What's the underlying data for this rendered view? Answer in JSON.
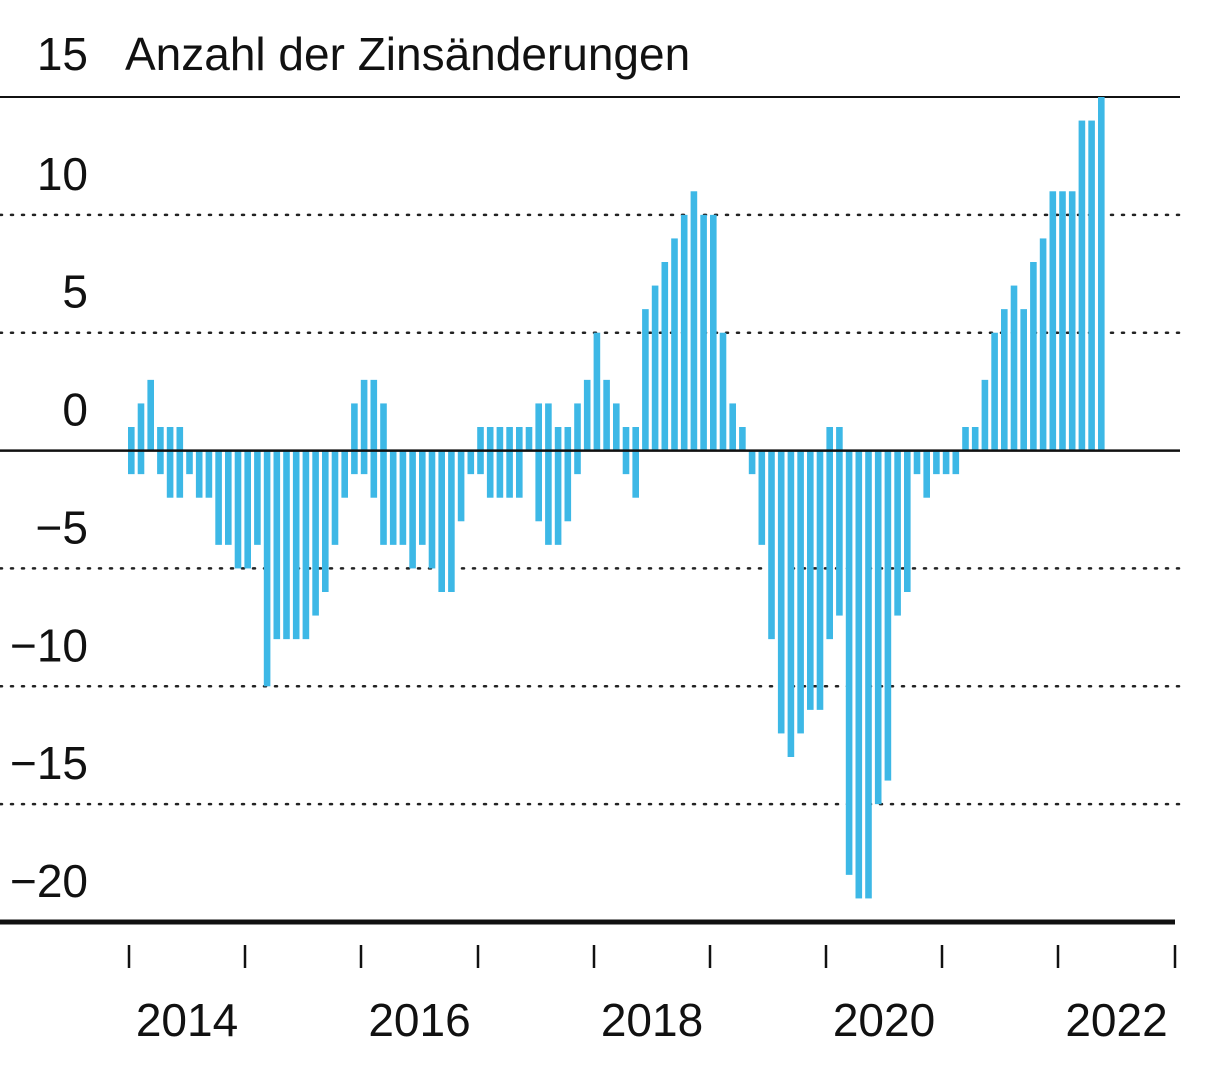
{
  "colors": {
    "bar": "#3db8e6",
    "axis": "#111111",
    "grid": "#222222"
  },
  "chart_data": {
    "type": "bar",
    "title": "Anzahl der Zinsänderungen",
    "ylim": [
      -20,
      15
    ],
    "yticks": [
      {
        "value": 15,
        "label": "15"
      },
      {
        "value": 10,
        "label": "10"
      },
      {
        "value": 5,
        "label": "5"
      },
      {
        "value": 0,
        "label": "0"
      },
      {
        "value": -5,
        "label": "−5"
      },
      {
        "value": -10,
        "label": "−10"
      },
      {
        "value": -15,
        "label": "−15"
      },
      {
        "value": -20,
        "label": "−20"
      }
    ],
    "xlabels": [
      "2014",
      "2016",
      "2018",
      "2020",
      "2022"
    ],
    "grid": "dotted horizontal",
    "bars": [
      {
        "pos": 1,
        "neg": -1
      },
      {
        "pos": 2,
        "neg": -1
      },
      {
        "pos": 3,
        "neg": 0
      },
      {
        "pos": 1,
        "neg": -1
      },
      {
        "pos": 1,
        "neg": -2
      },
      {
        "pos": 1,
        "neg": -2
      },
      {
        "pos": 0,
        "neg": -1
      },
      {
        "pos": 0,
        "neg": -2
      },
      {
        "pos": 0,
        "neg": -2
      },
      {
        "pos": 0,
        "neg": -4
      },
      {
        "pos": 0,
        "neg": -4
      },
      {
        "pos": 0,
        "neg": -5
      },
      {
        "pos": 0,
        "neg": -5
      },
      {
        "pos": 0,
        "neg": -4
      },
      {
        "pos": 0,
        "neg": -10
      },
      {
        "pos": 0,
        "neg": -8
      },
      {
        "pos": 0,
        "neg": -8
      },
      {
        "pos": 0,
        "neg": -8
      },
      {
        "pos": 0,
        "neg": -8
      },
      {
        "pos": 0,
        "neg": -7
      },
      {
        "pos": 0,
        "neg": -6
      },
      {
        "pos": 0,
        "neg": -4
      },
      {
        "pos": 0,
        "neg": -2
      },
      {
        "pos": 2,
        "neg": -1
      },
      {
        "pos": 3,
        "neg": -1
      },
      {
        "pos": 3,
        "neg": -2
      },
      {
        "pos": 2,
        "neg": -4
      },
      {
        "pos": 0,
        "neg": -4
      },
      {
        "pos": 0,
        "neg": -4
      },
      {
        "pos": 0,
        "neg": -5
      },
      {
        "pos": 0,
        "neg": -4
      },
      {
        "pos": 0,
        "neg": -5
      },
      {
        "pos": 0,
        "neg": -6
      },
      {
        "pos": 0,
        "neg": -6
      },
      {
        "pos": 0,
        "neg": -3
      },
      {
        "pos": 0,
        "neg": -1
      },
      {
        "pos": 1,
        "neg": -1
      },
      {
        "pos": 1,
        "neg": -2
      },
      {
        "pos": 1,
        "neg": -2
      },
      {
        "pos": 1,
        "neg": -2
      },
      {
        "pos": 1,
        "neg": -2
      },
      {
        "pos": 1,
        "neg": 0
      },
      {
        "pos": 2,
        "neg": -3
      },
      {
        "pos": 2,
        "neg": -4
      },
      {
        "pos": 1,
        "neg": -4
      },
      {
        "pos": 1,
        "neg": -3
      },
      {
        "pos": 2,
        "neg": -1
      },
      {
        "pos": 3,
        "neg": 0
      },
      {
        "pos": 5,
        "neg": 0
      },
      {
        "pos": 3,
        "neg": 0
      },
      {
        "pos": 2,
        "neg": 0
      },
      {
        "pos": 1,
        "neg": -1
      },
      {
        "pos": 1,
        "neg": -2
      },
      {
        "pos": 6,
        "neg": 0
      },
      {
        "pos": 7,
        "neg": 0
      },
      {
        "pos": 8,
        "neg": 0
      },
      {
        "pos": 9,
        "neg": 0
      },
      {
        "pos": 10,
        "neg": 0
      },
      {
        "pos": 11,
        "neg": 0
      },
      {
        "pos": 10,
        "neg": 0
      },
      {
        "pos": 10,
        "neg": 0
      },
      {
        "pos": 5,
        "neg": 0
      },
      {
        "pos": 2,
        "neg": 0
      },
      {
        "pos": 1,
        "neg": 0
      },
      {
        "pos": 0,
        "neg": -1
      },
      {
        "pos": 0,
        "neg": -4
      },
      {
        "pos": 0,
        "neg": -8
      },
      {
        "pos": 0,
        "neg": -12
      },
      {
        "pos": 0,
        "neg": -13
      },
      {
        "pos": 0,
        "neg": -12
      },
      {
        "pos": 0,
        "neg": -11
      },
      {
        "pos": 0,
        "neg": -11
      },
      {
        "pos": 1,
        "neg": -8
      },
      {
        "pos": 1,
        "neg": -7
      },
      {
        "pos": 0,
        "neg": -18
      },
      {
        "pos": 0,
        "neg": -19
      },
      {
        "pos": 0,
        "neg": -19
      },
      {
        "pos": 0,
        "neg": -15
      },
      {
        "pos": 0,
        "neg": -14
      },
      {
        "pos": 0,
        "neg": -7
      },
      {
        "pos": 0,
        "neg": -6
      },
      {
        "pos": 0,
        "neg": -1
      },
      {
        "pos": 0,
        "neg": -2
      },
      {
        "pos": 0,
        "neg": -1
      },
      {
        "pos": 0,
        "neg": -1
      },
      {
        "pos": 0,
        "neg": -1
      },
      {
        "pos": 1,
        "neg": 0
      },
      {
        "pos": 1,
        "neg": 0
      },
      {
        "pos": 3,
        "neg": 0
      },
      {
        "pos": 5,
        "neg": 0
      },
      {
        "pos": 6,
        "neg": 0
      },
      {
        "pos": 7,
        "neg": 0
      },
      {
        "pos": 6,
        "neg": 0
      },
      {
        "pos": 8,
        "neg": 0
      },
      {
        "pos": 9,
        "neg": 0
      },
      {
        "pos": 11,
        "neg": 0
      },
      {
        "pos": 11,
        "neg": 0
      },
      {
        "pos": 11,
        "neg": 0
      },
      {
        "pos": 14,
        "neg": 0
      },
      {
        "pos": 14,
        "neg": 0
      },
      {
        "pos": 15,
        "neg": 0
      }
    ]
  }
}
